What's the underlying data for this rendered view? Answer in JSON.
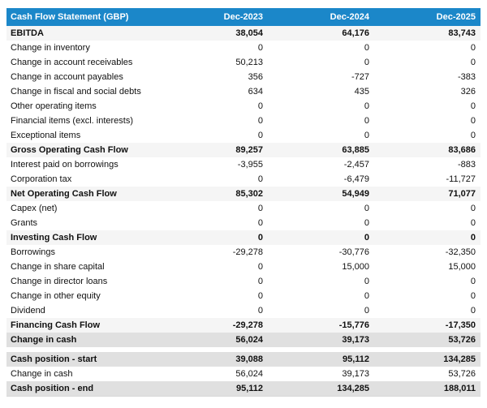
{
  "colors": {
    "header_bg": "#1b87c9",
    "header_text": "#ffffff",
    "section_row_bg": "#f5f5f5",
    "highlight_row_bg": "#e0e0e0"
  },
  "chart_data": {
    "type": "table",
    "title": "Cash Flow Statement (GBP)",
    "columns": [
      "Dec-2023",
      "Dec-2024",
      "Dec-2025"
    ],
    "rows": [
      {
        "label": "EBITDA",
        "values": [
          "38,054",
          "64,176",
          "83,743"
        ],
        "style": "section"
      },
      {
        "label": "Change in inventory",
        "values": [
          "0",
          "0",
          "0"
        ],
        "style": "plain"
      },
      {
        "label": "Change in account receivables",
        "values": [
          "50,213",
          "0",
          "0"
        ],
        "style": "plain"
      },
      {
        "label": "Change in account payables",
        "values": [
          "356",
          "-727",
          "-383"
        ],
        "style": "plain"
      },
      {
        "label": "Change in fiscal and social debts",
        "values": [
          "634",
          "435",
          "326"
        ],
        "style": "plain"
      },
      {
        "label": "Other operating items",
        "values": [
          "0",
          "0",
          "0"
        ],
        "style": "plain"
      },
      {
        "label": "Financial items (excl. interests)",
        "values": [
          "0",
          "0",
          "0"
        ],
        "style": "plain"
      },
      {
        "label": "Exceptional items",
        "values": [
          "0",
          "0",
          "0"
        ],
        "style": "plain"
      },
      {
        "label": "Gross Operating Cash Flow",
        "values": [
          "89,257",
          "63,885",
          "83,686"
        ],
        "style": "section"
      },
      {
        "label": "Interest paid on borrowings",
        "values": [
          "-3,955",
          "-2,457",
          "-883"
        ],
        "style": "plain"
      },
      {
        "label": "Corporation tax",
        "values": [
          "0",
          "-6,479",
          "-11,727"
        ],
        "style": "plain"
      },
      {
        "label": "Net Operating Cash Flow",
        "values": [
          "85,302",
          "54,949",
          "71,077"
        ],
        "style": "section"
      },
      {
        "label": "Capex (net)",
        "values": [
          "0",
          "0",
          "0"
        ],
        "style": "plain"
      },
      {
        "label": "Grants",
        "values": [
          "0",
          "0",
          "0"
        ],
        "style": "plain"
      },
      {
        "label": "Investing Cash Flow",
        "values": [
          "0",
          "0",
          "0"
        ],
        "style": "section"
      },
      {
        "label": "Borrowings",
        "values": [
          "-29,278",
          "-30,776",
          "-32,350"
        ],
        "style": "plain"
      },
      {
        "label": "Change in share capital",
        "values": [
          "0",
          "15,000",
          "15,000"
        ],
        "style": "plain"
      },
      {
        "label": "Change in director loans",
        "values": [
          "0",
          "0",
          "0"
        ],
        "style": "plain"
      },
      {
        "label": "Change in other equity",
        "values": [
          "0",
          "0",
          "0"
        ],
        "style": "plain"
      },
      {
        "label": "Dividend",
        "values": [
          "0",
          "0",
          "0"
        ],
        "style": "plain"
      },
      {
        "label": "Financing Cash Flow",
        "values": [
          "-29,278",
          "-15,776",
          "-17,350"
        ],
        "style": "section"
      },
      {
        "label": "Change in cash",
        "values": [
          "56,024",
          "39,173",
          "53,726"
        ],
        "style": "highlight"
      },
      {
        "style": "spacer"
      },
      {
        "label": "Cash position - start",
        "values": [
          "39,088",
          "95,112",
          "134,285"
        ],
        "style": "highlight"
      },
      {
        "label": "Change in cash",
        "values": [
          "56,024",
          "39,173",
          "53,726"
        ],
        "style": "plain"
      },
      {
        "label": "Cash position - end",
        "values": [
          "95,112",
          "134,285",
          "188,011"
        ],
        "style": "highlight"
      }
    ]
  }
}
